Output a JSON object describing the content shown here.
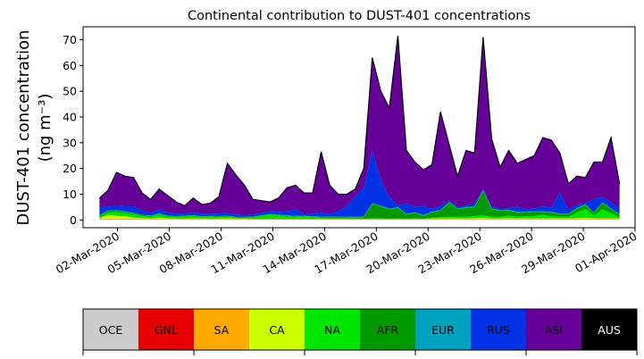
{
  "chart_data": {
    "type": "area",
    "stacked": true,
    "title": "Continental contribution to DUST-401 concentrations",
    "ylabel_line1": "DUST-401 concentration",
    "ylabel_line2": "(ng m⁻³)",
    "ylim": [
      -3,
      75
    ],
    "yticks": [
      0,
      10,
      20,
      30,
      40,
      50,
      60,
      70
    ],
    "x_start_date": "2020-02-29",
    "x_end_date": "2020-04-01",
    "xticks": [
      "02-Mar-2020",
      "05-Mar-2020",
      "08-Mar-2020",
      "11-Mar-2020",
      "14-Mar-2020",
      "17-Mar-2020",
      "20-Mar-2020",
      "23-Mar-2020",
      "26-Mar-2020",
      "29-Mar-2020",
      "01-Apr-2020"
    ],
    "xtick_dates": [
      "2020-03-02",
      "2020-03-05",
      "2020-03-08",
      "2020-03-11",
      "2020-03-14",
      "2020-03-17",
      "2020-03-20",
      "2020-03-23",
      "2020-03-26",
      "2020-03-29",
      "2020-04-01"
    ],
    "legend_position": "bottom",
    "total": [
      8.5,
      11.5,
      18.5,
      17,
      16.5,
      10.5,
      8,
      12,
      9.5,
      7,
      5.5,
      8.5,
      6,
      6.5,
      9,
      22,
      17.5,
      13.5,
      8,
      7.5,
      7,
      8.5,
      12.5,
      13.5,
      10.5,
      10.5,
      26.5,
      13.5,
      10,
      10,
      12,
      20,
      63,
      50,
      43.5,
      71.5,
      27,
      22.5,
      19.5,
      21.5,
      42,
      29.5,
      17,
      27,
      26,
      71,
      31.5,
      20.5,
      27,
      22,
      23.5,
      25,
      32,
      31,
      26,
      14,
      17,
      16.5,
      22.5,
      22.5,
      32,
      14
    ],
    "series": [
      {
        "name": "OCE",
        "color": "#cccccc",
        "values": [
          0.2,
          0.2,
          0.2,
          0.2,
          0.2,
          0.1,
          0.1,
          0.1,
          0.1,
          0.1,
          0.1,
          0.1,
          0.1,
          0.1,
          0.1,
          0.1,
          0.1,
          0.1,
          0.1,
          0.1,
          0.1,
          0.1,
          0.1,
          0.1,
          0.1,
          0.1,
          0.1,
          0.1,
          0.1,
          0.1,
          0.1,
          0.1,
          0.1,
          0.1,
          0.1,
          0.1,
          0.1,
          0.1,
          0.1,
          0.1,
          0.1,
          0.1,
          0.1,
          0.1,
          0.1,
          0.1,
          0.1,
          0.1,
          0.1,
          0.1,
          0.1,
          0.1,
          0.1,
          0.1,
          0.1,
          0.1,
          0.1,
          0.1,
          0.1,
          0.1,
          0.1,
          0.1
        ]
      },
      {
        "name": "GNL",
        "color": "#e60000",
        "values": [
          0.1,
          0.1,
          0.1,
          0.1,
          0.1,
          0.1,
          0.1,
          0.1,
          0.1,
          0.1,
          0.1,
          0.1,
          0.1,
          0.1,
          0.1,
          0.1,
          0.1,
          0.1,
          0.1,
          0.1,
          0.1,
          0.1,
          0.1,
          0.1,
          0.1,
          0.1,
          0.1,
          0.1,
          0.1,
          0.1,
          0.1,
          0.1,
          0.1,
          0.1,
          0.1,
          0.1,
          0.1,
          0.1,
          0.1,
          0.1,
          0.1,
          0.1,
          0.1,
          0.1,
          0.1,
          0.1,
          0.1,
          0.1,
          0.1,
          0.1,
          0.1,
          0.1,
          0.1,
          0.1,
          0.1,
          0.1,
          0.1,
          0.1,
          0.1,
          0.1,
          0.1,
          0.1
        ]
      },
      {
        "name": "SA",
        "color": "#ffaa00",
        "values": [
          0.1,
          0.1,
          0.1,
          0.1,
          0.1,
          0.1,
          0.1,
          0.1,
          0.1,
          0.1,
          0.1,
          0.1,
          0.1,
          0.1,
          0.1,
          0.1,
          0.1,
          0.1,
          0.1,
          0.1,
          0.1,
          0.1,
          0.1,
          0.1,
          0.1,
          0.1,
          0.1,
          0.1,
          0.1,
          0.1,
          0.1,
          0.1,
          0.1,
          0.1,
          0.1,
          0.1,
          0.1,
          0.1,
          0.1,
          0.1,
          0.1,
          0.1,
          0.1,
          0.1,
          0.1,
          0.1,
          0.1,
          0.1,
          0.1,
          0.1,
          0.1,
          0.1,
          0.1,
          0.1,
          0.1,
          0.1,
          0.1,
          0.1,
          0.1,
          0.1,
          0.1,
          0.1
        ]
      },
      {
        "name": "CA",
        "color": "#ccff00",
        "values": [
          0.3,
          1.5,
          1.2,
          1.0,
          0.5,
          0.4,
          0.3,
          0.5,
          0.3,
          0.2,
          0.2,
          0.3,
          0.2,
          0.2,
          0.2,
          0.3,
          0.2,
          0.2,
          0.1,
          0.1,
          0.1,
          0.1,
          0.1,
          0.1,
          0.1,
          0.1,
          0.1,
          0.1,
          0.1,
          0.1,
          0.1,
          0.1,
          0.1,
          0.1,
          0.1,
          0.1,
          0.1,
          0.1,
          0.1,
          0.2,
          0.3,
          0.3,
          0.3,
          0.3,
          0.4,
          0.5,
          0.3,
          0.3,
          0.4,
          0.3,
          0.3,
          0.3,
          0.3,
          0.3,
          0.3,
          0.3,
          0.4,
          0.5,
          0.4,
          0.3,
          0.3,
          0.3
        ]
      },
      {
        "name": "NA",
        "color": "#00e600",
        "values": [
          0.4,
          1.0,
          1.4,
          1.2,
          1.2,
          0.8,
          0.6,
          1.2,
          0.6,
          0.6,
          0.8,
          0.8,
          0.5,
          0.7,
          0.6,
          0.6,
          0.3,
          0.3,
          0.5,
          1.0,
          1.5,
          1.2,
          0.9,
          0.7,
          0.7,
          0.6,
          0.4,
          0.3,
          0.3,
          0.3,
          0.2,
          0.2,
          0.3,
          0.3,
          0.2,
          0.3,
          0.2,
          0.3,
          0.2,
          0.4,
          0.5,
          0.6,
          0.6,
          0.6,
          0.8,
          1.0,
          0.6,
          0.5,
          1.0,
          0.7,
          0.8,
          1.0,
          1.4,
          0.8,
          0.6,
          0.6,
          2.2,
          3.5,
          1.0,
          3.5,
          2.0,
          0.5
        ]
      },
      {
        "name": "AFR",
        "color": "#009900",
        "values": [
          0.4,
          0.5,
          0.5,
          0.4,
          0.4,
          0.3,
          0.3,
          0.3,
          0.3,
          0.2,
          0.2,
          0.3,
          0.2,
          0.2,
          0.2,
          0.3,
          0.2,
          0.2,
          0.2,
          0.2,
          0.2,
          0.2,
          0.2,
          0.2,
          0.2,
          0.2,
          0.2,
          0.3,
          0.3,
          0.3,
          0.3,
          0.5,
          5.5,
          4.5,
          3.5,
          4.0,
          1.5,
          2.0,
          1.0,
          2.0,
          2.5,
          5.5,
          3.0,
          3.5,
          3.5,
          9.5,
          3.0,
          2.5,
          2.0,
          1.5,
          1.5,
          1.5,
          1.0,
          1.5,
          1.0,
          1.0,
          1.5,
          1.5,
          1.0,
          2.5,
          1.5,
          1.0
        ]
      },
      {
        "name": "EUR",
        "color": "#00a3bf",
        "values": [
          0.4,
          0.3,
          0.3,
          0.3,
          0.3,
          0.2,
          0.2,
          0.3,
          0.2,
          0.2,
          0.2,
          0.2,
          0.2,
          0.2,
          0.2,
          0.2,
          0.2,
          0.2,
          0.2,
          0.3,
          0.3,
          0.3,
          0.3,
          0.3,
          0.3,
          0.3,
          0.3,
          0.3,
          0.3,
          0.3,
          0.3,
          0.3,
          0.3,
          0.3,
          0.3,
          0.3,
          0.3,
          0.3,
          0.3,
          0.3,
          0.3,
          0.3,
          0.3,
          0.3,
          0.3,
          0.3,
          0.3,
          0.3,
          0.3,
          0.3,
          0.3,
          0.3,
          0.3,
          0.3,
          0.3,
          0.3,
          0.3,
          0.3,
          0.3,
          0.3,
          0.3,
          0.3
        ]
      },
      {
        "name": "RUS",
        "color": "#0033e6",
        "values": [
          3.0,
          1.5,
          1.7,
          2.0,
          2.5,
          1.5,
          1.0,
          1.5,
          1.0,
          1.0,
          0.8,
          1.0,
          1.0,
          0.8,
          1.0,
          1.0,
          0.8,
          0.6,
          0.7,
          0.8,
          1.0,
          1.0,
          1.5,
          2.5,
          0.5,
          1.0,
          1.5,
          1.0,
          2.0,
          4.0,
          8.0,
          11.0,
          20.5,
          10.0,
          4.5,
          0.5,
          4.0,
          2.0,
          3.5,
          1.0,
          1.5,
          0.5,
          0.5,
          0.5,
          1.0,
          0.5,
          0.5,
          0.5,
          0.5,
          2.0,
          1.0,
          1.0,
          2.0,
          1.5,
          8.0,
          1.5,
          1.0,
          0.5,
          5.0,
          2.0,
          2.5,
          2.0
        ]
      },
      {
        "name": "ASI",
        "color": "#660099",
        "values": [
          3.6,
          8.3,
          14.0,
          13.7,
          13.2,
          8.5,
          6.2,
          9.7,
          8.2,
          6.1,
          4.5,
          6.9,
          4.6,
          5.1,
          7.5,
          21.2,
          16.5,
          12.7,
          6.9,
          6.1,
          5.1,
          6.7,
          9.9,
          10.6,
          9.1,
          9.1,
          25.0,
          12.4,
          7.5,
          5.5,
          3.5,
          8.5,
          36.1,
          35.1,
          35.1,
          66.5,
          21.3,
          18.0,
          14.6,
          17.7,
          37.3,
          22.8,
          12.5,
          22.6,
          20.1,
          58.9,
          26.9,
          16.5,
          22.9,
          17.2,
          19.6,
          21.9,
          27.0,
          26.7,
          16.5,
          10.3,
          13.5,
          11.9,
          14.9,
          14.0,
          25.7,
          9.9
        ]
      },
      {
        "name": "AUS",
        "color": "#000000",
        "values": [
          0,
          0,
          0,
          0,
          0,
          0,
          0,
          0,
          0,
          0,
          0,
          0,
          0,
          0,
          0,
          0,
          0,
          0,
          0,
          0,
          0,
          0,
          0,
          0,
          0,
          0,
          0,
          0,
          0,
          0,
          0,
          0,
          0,
          0,
          0,
          0,
          0,
          0,
          0,
          0,
          0,
          0,
          0,
          0,
          0,
          0,
          0,
          0,
          0,
          0,
          0,
          0,
          0,
          0,
          0,
          0,
          0,
          0,
          0,
          0,
          0,
          0
        ]
      }
    ]
  }
}
